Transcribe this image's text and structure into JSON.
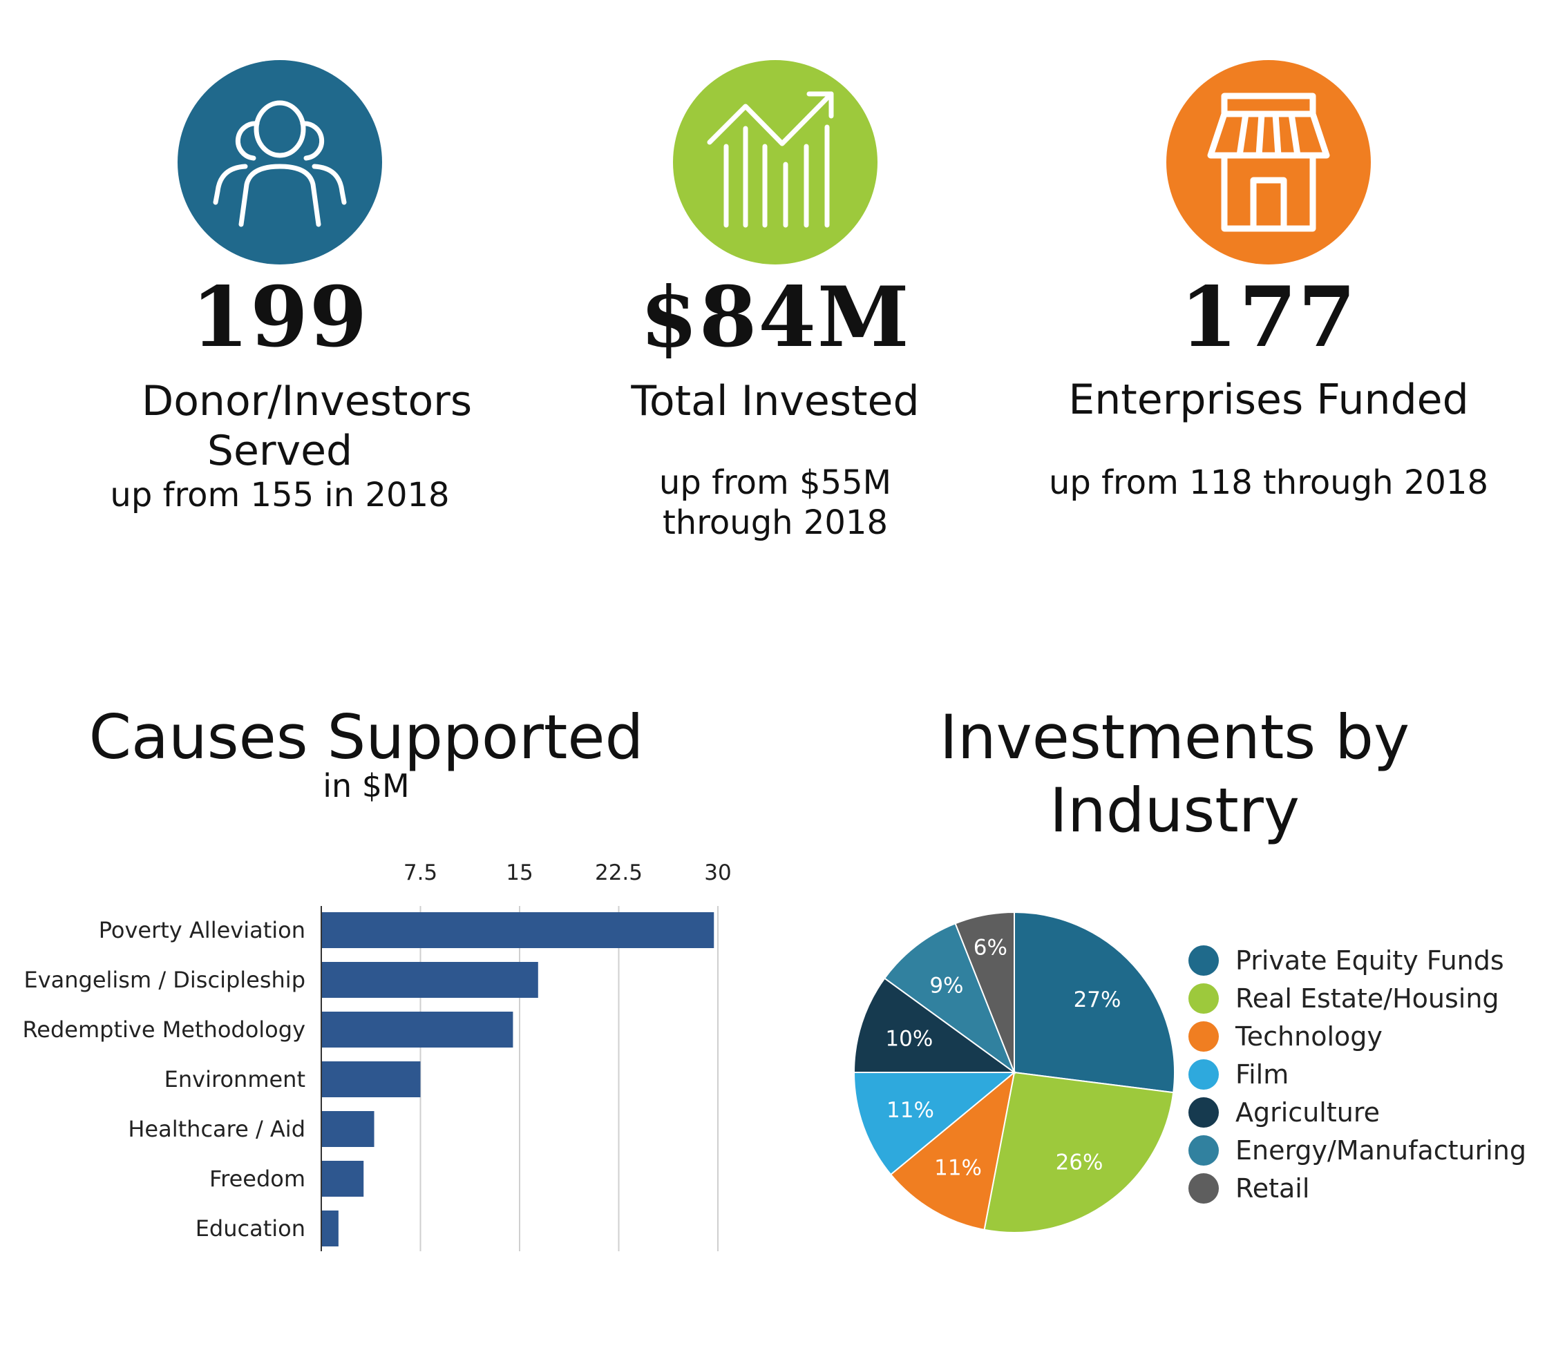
{
  "stats": [
    {
      "value": "199",
      "label": "Donor/Investors Served",
      "sub": "up from 155 in 2018",
      "icon": "people-icon",
      "color": "#20698c"
    },
    {
      "value": "$84M",
      "label": "Total Invested",
      "sub_lines": [
        "up from $55M",
        "through 2018"
      ],
      "icon": "growth-chart-icon",
      "color": "#9dc93c"
    },
    {
      "value": "177",
      "label": "Enterprises Funded",
      "sub": "up from 118 through 2018",
      "icon": "storefront-icon",
      "color": "#f07e21"
    }
  ],
  "causes": {
    "title": "Causes Supported",
    "subtitle": "in $M"
  },
  "industry": {
    "title_lines": [
      "Investments by",
      "Industry"
    ]
  },
  "chart_data": [
    {
      "type": "bar",
      "orientation": "horizontal",
      "categories": [
        "Poverty Alleviation",
        "Evangelism / Discipleship",
        "Redemptive Methodology",
        "Environment",
        "Healthcare / Aid",
        "Freedom",
        "Education"
      ],
      "values": [
        29.7,
        16.4,
        14.5,
        7.5,
        4.0,
        3.2,
        1.3
      ],
      "xticks": [
        7.5,
        15,
        22.5,
        30
      ],
      "xlim": [
        0,
        30
      ],
      "tick_position": "top",
      "grid": true,
      "bar_color": "#2e578f"
    },
    {
      "type": "pie",
      "legend_position": "right",
      "slices": [
        {
          "label": "Private Equity Funds",
          "value": 27,
          "color": "#1f6a8b"
        },
        {
          "label": "Real Estate/Housing",
          "value": 26,
          "color": "#9dc93c"
        },
        {
          "label": "Technology",
          "value": 11,
          "color": "#f07e21"
        },
        {
          "label": "Film",
          "value": 11,
          "color": "#2ea9dd"
        },
        {
          "label": "Agriculture",
          "value": 10,
          "color": "#163a4f"
        },
        {
          "label": "Energy/Manufacturing",
          "value": 9,
          "color": "#31819f"
        },
        {
          "label": "Retail",
          "value": 6,
          "color": "#5e5e5e"
        }
      ]
    }
  ]
}
